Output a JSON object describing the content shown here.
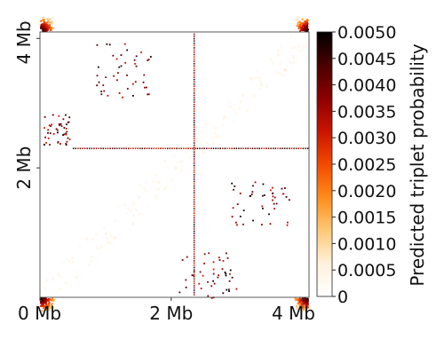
{
  "chart_data": {
    "type": "heatmap",
    "title": "",
    "xlabel": "",
    "ylabel": "",
    "x_ticks": [
      "0 Mb",
      "2 Mb",
      "4 Mb"
    ],
    "x_tick_values": [
      0,
      2,
      4
    ],
    "y_ticks": [
      "2 Mb",
      "4 Mb"
    ],
    "y_tick_values": [
      2,
      4
    ],
    "xlim": [
      0,
      4.1
    ],
    "ylim": [
      0,
      4.1
    ],
    "colorbar": {
      "label": "Predicted triplet probability",
      "min": 0,
      "max": 0.005,
      "ticks": [
        0,
        0.0005,
        0.001,
        0.0015,
        0.002,
        0.0025,
        0.003,
        0.0035,
        0.004,
        0.0045,
        0.005
      ],
      "tick_labels": [
        "0",
        "0.0005",
        "0.0010",
        "0.0015",
        "0.0020",
        "0.0025",
        "0.0030",
        "0.0035",
        "0.0040",
        "0.0045",
        "0.0050"
      ],
      "colormap": [
        "#ffffff",
        "#fff1dc",
        "#ffc878",
        "#ff8c1a",
        "#f24a00",
        "#c81400",
        "#8c0000",
        "#4a0000",
        "#000000"
      ]
    },
    "features": {
      "horizontal_line_y_mb": 2.3,
      "vertical_line_x_mb": 2.35,
      "high_corners": [
        [
          0,
          0
        ],
        [
          0,
          4.1
        ],
        [
          4.1,
          0
        ],
        [
          4.1,
          4.1
        ]
      ],
      "scatter_clusters": [
        {
          "x": [
            0.85,
            1.7
          ],
          "y": [
            3.1,
            3.95
          ]
        },
        {
          "x": [
            0.05,
            0.45
          ],
          "y": [
            2.35,
            2.85
          ]
        },
        {
          "x": [
            2.9,
            3.8
          ],
          "y": [
            1.1,
            1.8
          ]
        },
        {
          "x": [
            2.1,
            3.0
          ],
          "y": [
            0.0,
            0.7
          ]
        }
      ]
    }
  }
}
